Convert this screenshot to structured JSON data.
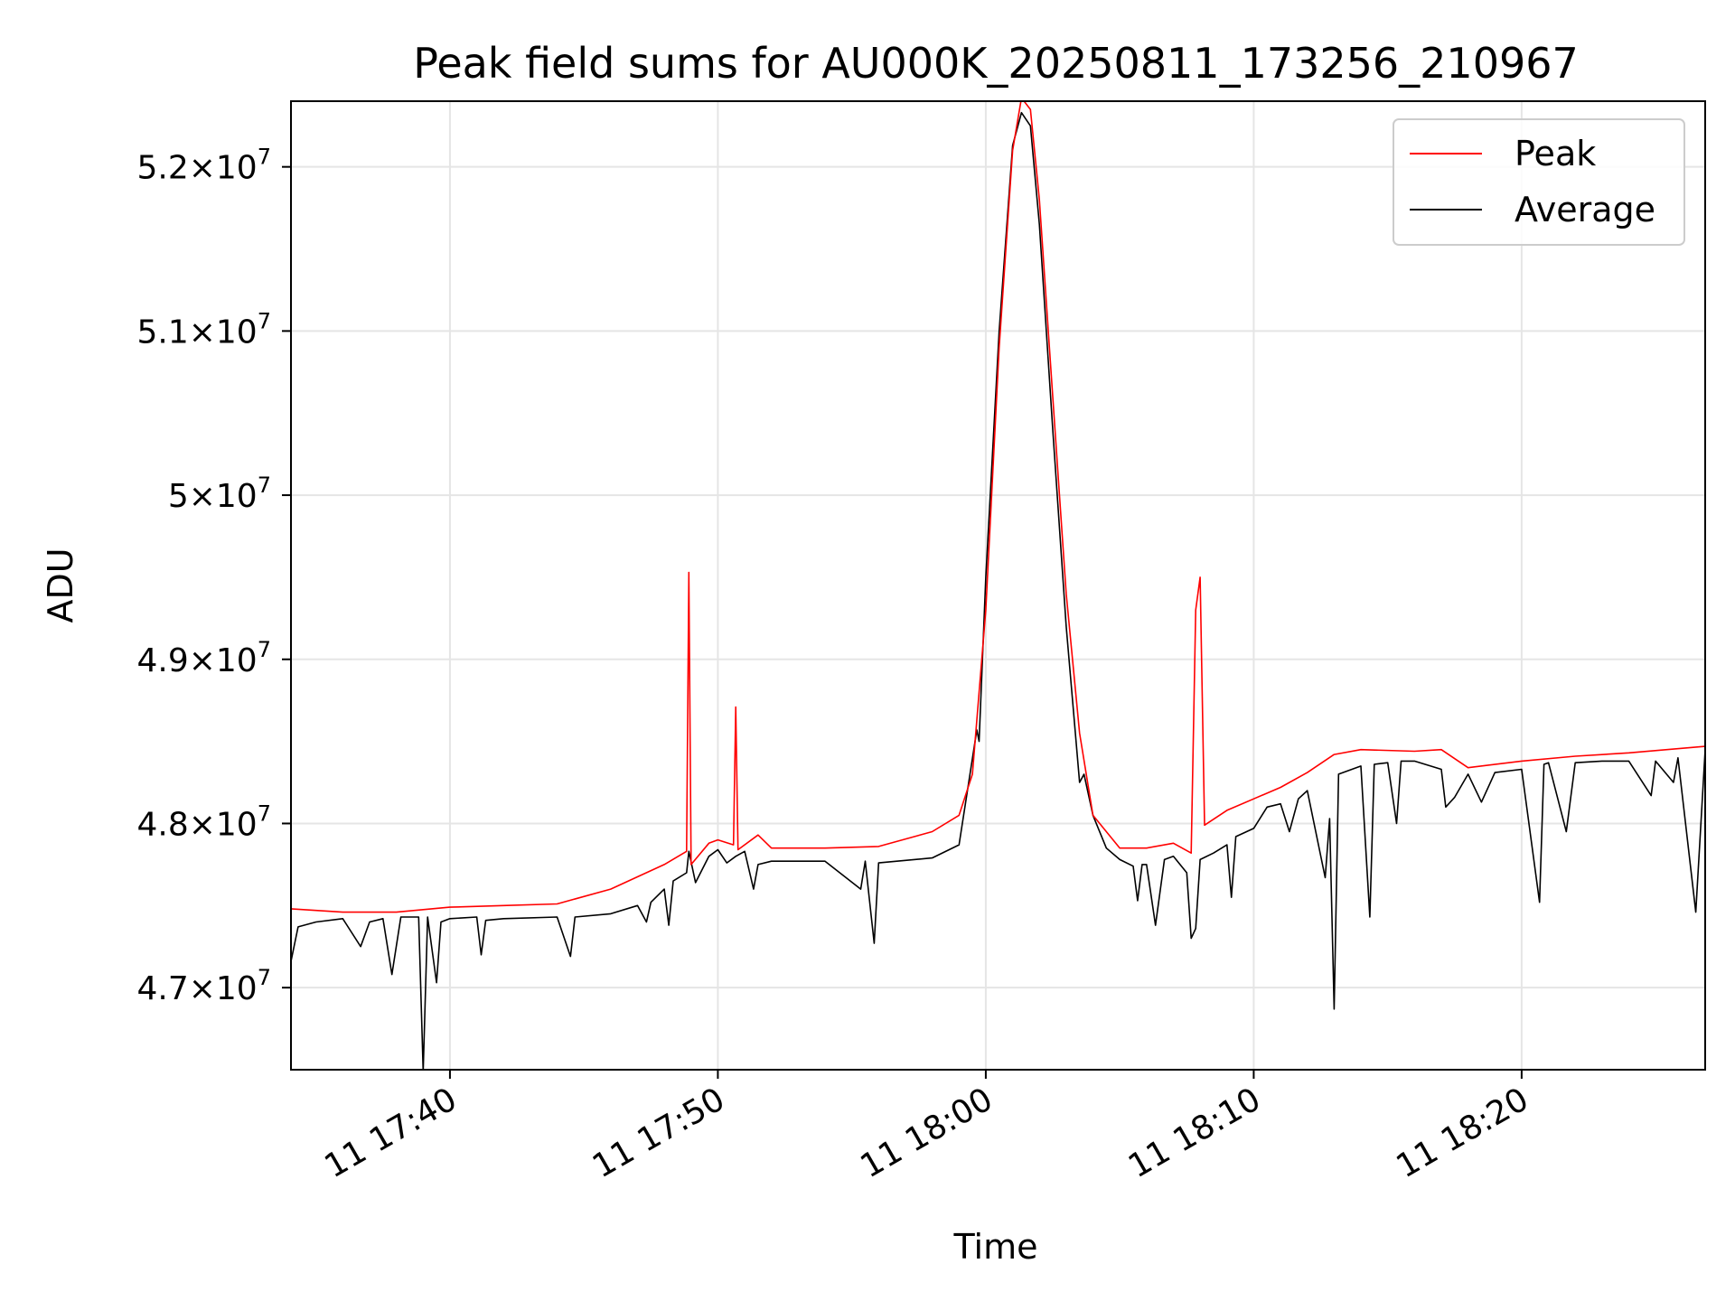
{
  "chart_data": {
    "type": "line",
    "title": "Peak field sums for AU000K_20250811_173256_210967",
    "xlabel": "Time",
    "ylabel": "ADU",
    "x_unit": "date-time",
    "xlim": [
      "2025-08-11 17:34:04",
      "2025-08-11 18:26:51"
    ],
    "ylim": [
      46500000,
      52400000
    ],
    "x_ticks": [
      {
        "value": "2025-08-11 17:40",
        "label": "11 17:40"
      },
      {
        "value": "2025-08-11 17:50",
        "label": "11 17:50"
      },
      {
        "value": "2025-08-11 18:00",
        "label": "11 18:00"
      },
      {
        "value": "2025-08-11 18:10",
        "label": "11 18:10"
      },
      {
        "value": "2025-08-11 18:20",
        "label": "11 18:20"
      }
    ],
    "y_ticks": [
      {
        "value": 47000000,
        "mantissa": "4.7",
        "exponent": "7"
      },
      {
        "value": 48000000,
        "mantissa": "4.8",
        "exponent": "7"
      },
      {
        "value": 49000000,
        "mantissa": "4.9",
        "exponent": "7"
      },
      {
        "value": 50000000,
        "mantissa": "5",
        "exponent": "7"
      },
      {
        "value": 51000000,
        "mantissa": "5.1",
        "exponent": "7"
      },
      {
        "value": 52000000,
        "mantissa": "5.2",
        "exponent": "7"
      }
    ],
    "tick_multiplier": "×",
    "tick_base": "10",
    "grid": true,
    "legend_position": "top-right",
    "series": [
      {
        "name": "Peak",
        "color": "#ff0000",
        "points": [
          [
            "17:34:04",
            47480000
          ],
          [
            "17:36:00",
            47460000
          ],
          [
            "17:38:00",
            47460000
          ],
          [
            "17:40:00",
            47490000
          ],
          [
            "17:42:00",
            47500000
          ],
          [
            "17:44:00",
            47510000
          ],
          [
            "17:46:00",
            47600000
          ],
          [
            "17:48:00",
            47750000
          ],
          [
            "17:48:50",
            47830000
          ],
          [
            "17:48:55",
            49530000
          ],
          [
            "17:49:00",
            47750000
          ],
          [
            "17:49:40",
            47880000
          ],
          [
            "17:50:00",
            47900000
          ],
          [
            "17:50:35",
            47870000
          ],
          [
            "17:50:40",
            48710000
          ],
          [
            "17:50:45",
            47840000
          ],
          [
            "17:51:30",
            47930000
          ],
          [
            "17:52:00",
            47850000
          ],
          [
            "17:54:00",
            47850000
          ],
          [
            "17:56:00",
            47860000
          ],
          [
            "17:58:00",
            47950000
          ],
          [
            "17:59:00",
            48050000
          ],
          [
            "17:59:30",
            48300000
          ],
          [
            "18:00:00",
            49300000
          ],
          [
            "18:00:30",
            50900000
          ],
          [
            "18:01:00",
            52100000
          ],
          [
            "18:01:20",
            52420000
          ],
          [
            "18:01:40",
            52350000
          ],
          [
            "18:02:00",
            51800000
          ],
          [
            "18:02:30",
            50600000
          ],
          [
            "18:03:00",
            49400000
          ],
          [
            "18:03:30",
            48550000
          ],
          [
            "18:04:00",
            48050000
          ],
          [
            "18:05:00",
            47850000
          ],
          [
            "18:06:00",
            47850000
          ],
          [
            "18:07:00",
            47880000
          ],
          [
            "18:07:40",
            47820000
          ],
          [
            "18:07:50",
            49300000
          ],
          [
            "18:08:00",
            49500000
          ],
          [
            "18:08:10",
            47990000
          ],
          [
            "18:09:00",
            48080000
          ],
          [
            "18:10:00",
            48150000
          ],
          [
            "18:11:00",
            48220000
          ],
          [
            "18:12:00",
            48310000
          ],
          [
            "18:13:00",
            48420000
          ],
          [
            "18:14:00",
            48450000
          ],
          [
            "18:16:00",
            48440000
          ],
          [
            "18:17:00",
            48450000
          ],
          [
            "18:18:00",
            48340000
          ],
          [
            "18:20:00",
            48380000
          ],
          [
            "18:22:00",
            48410000
          ],
          [
            "18:24:00",
            48430000
          ],
          [
            "18:26:51",
            48470000
          ]
        ]
      },
      {
        "name": "Average",
        "color": "#000000",
        "points": [
          [
            "17:34:04",
            47160000
          ],
          [
            "17:34:20",
            47370000
          ],
          [
            "17:35:00",
            47400000
          ],
          [
            "17:36:00",
            47420000
          ],
          [
            "17:36:40",
            47250000
          ],
          [
            "17:37:00",
            47400000
          ],
          [
            "17:37:30",
            47420000
          ],
          [
            "17:37:50",
            47080000
          ],
          [
            "17:38:10",
            47430000
          ],
          [
            "17:38:50",
            47430000
          ],
          [
            "17:39:00",
            46490000
          ],
          [
            "17:39:10",
            47430000
          ],
          [
            "17:39:30",
            47030000
          ],
          [
            "17:39:40",
            47400000
          ],
          [
            "17:40:00",
            47420000
          ],
          [
            "17:41:00",
            47430000
          ],
          [
            "17:41:10",
            47200000
          ],
          [
            "17:41:20",
            47410000
          ],
          [
            "17:42:00",
            47420000
          ],
          [
            "17:44:00",
            47430000
          ],
          [
            "17:44:30",
            47190000
          ],
          [
            "17:44:40",
            47430000
          ],
          [
            "17:46:00",
            47450000
          ],
          [
            "17:47:00",
            47500000
          ],
          [
            "17:47:20",
            47400000
          ],
          [
            "17:47:30",
            47520000
          ],
          [
            "17:48:00",
            47600000
          ],
          [
            "17:48:10",
            47380000
          ],
          [
            "17:48:20",
            47650000
          ],
          [
            "17:48:50",
            47700000
          ],
          [
            "17:48:55",
            47830000
          ],
          [
            "17:49:10",
            47640000
          ],
          [
            "17:49:40",
            47800000
          ],
          [
            "17:50:00",
            47840000
          ],
          [
            "17:50:20",
            47760000
          ],
          [
            "17:50:40",
            47800000
          ],
          [
            "17:51:00",
            47830000
          ],
          [
            "17:51:20",
            47600000
          ],
          [
            "17:51:30",
            47750000
          ],
          [
            "17:52:00",
            47770000
          ],
          [
            "17:54:00",
            47770000
          ],
          [
            "17:55:20",
            47600000
          ],
          [
            "17:55:30",
            47770000
          ],
          [
            "17:55:50",
            47270000
          ],
          [
            "17:56:00",
            47760000
          ],
          [
            "17:58:00",
            47790000
          ],
          [
            "17:59:00",
            47870000
          ],
          [
            "17:59:40",
            48570000
          ],
          [
            "17:59:45",
            48500000
          ],
          [
            "18:00:00",
            49500000
          ],
          [
            "18:00:30",
            51000000
          ],
          [
            "18:01:00",
            52130000
          ],
          [
            "18:01:20",
            52330000
          ],
          [
            "18:01:40",
            52250000
          ],
          [
            "18:02:00",
            51650000
          ],
          [
            "18:02:30",
            50400000
          ],
          [
            "18:03:00",
            49200000
          ],
          [
            "18:03:30",
            48250000
          ],
          [
            "18:03:40",
            48300000
          ],
          [
            "18:04:00",
            48050000
          ],
          [
            "18:04:30",
            47850000
          ],
          [
            "18:05:00",
            47780000
          ],
          [
            "18:05:30",
            47740000
          ],
          [
            "18:05:40",
            47530000
          ],
          [
            "18:05:50",
            47750000
          ],
          [
            "18:06:00",
            47750000
          ],
          [
            "18:06:20",
            47380000
          ],
          [
            "18:06:40",
            47780000
          ],
          [
            "18:07:00",
            47800000
          ],
          [
            "18:07:30",
            47700000
          ],
          [
            "18:07:40",
            47300000
          ],
          [
            "18:07:50",
            47360000
          ],
          [
            "18:08:00",
            47780000
          ],
          [
            "18:08:30",
            47820000
          ],
          [
            "18:09:00",
            47870000
          ],
          [
            "18:09:10",
            47550000
          ],
          [
            "18:09:20",
            47920000
          ],
          [
            "18:10:00",
            47970000
          ],
          [
            "18:10:30",
            48100000
          ],
          [
            "18:11:00",
            48120000
          ],
          [
            "18:11:20",
            47950000
          ],
          [
            "18:11:40",
            48150000
          ],
          [
            "18:12:00",
            48200000
          ],
          [
            "18:12:40",
            47670000
          ],
          [
            "18:12:50",
            48030000
          ],
          [
            "18:13:00",
            46870000
          ],
          [
            "18:13:10",
            48300000
          ],
          [
            "18:14:00",
            48350000
          ],
          [
            "18:14:20",
            47430000
          ],
          [
            "18:14:30",
            48360000
          ],
          [
            "18:15:00",
            48370000
          ],
          [
            "18:15:20",
            48000000
          ],
          [
            "18:15:30",
            48380000
          ],
          [
            "18:16:00",
            48380000
          ],
          [
            "18:17:00",
            48330000
          ],
          [
            "18:17:10",
            48100000
          ],
          [
            "18:17:30",
            48160000
          ],
          [
            "18:18:00",
            48300000
          ],
          [
            "18:18:30",
            48130000
          ],
          [
            "18:19:00",
            48310000
          ],
          [
            "18:20:00",
            48330000
          ],
          [
            "18:20:40",
            47520000
          ],
          [
            "18:20:50",
            48360000
          ],
          [
            "18:21:00",
            48370000
          ],
          [
            "18:21:40",
            47950000
          ],
          [
            "18:22:00",
            48370000
          ],
          [
            "18:23:00",
            48380000
          ],
          [
            "18:24:00",
            48380000
          ],
          [
            "18:24:50",
            48170000
          ],
          [
            "18:25:00",
            48380000
          ],
          [
            "18:25:40",
            48250000
          ],
          [
            "18:25:50",
            48400000
          ],
          [
            "18:26:30",
            47460000
          ],
          [
            "18:26:51",
            48450000
          ]
        ]
      }
    ]
  }
}
